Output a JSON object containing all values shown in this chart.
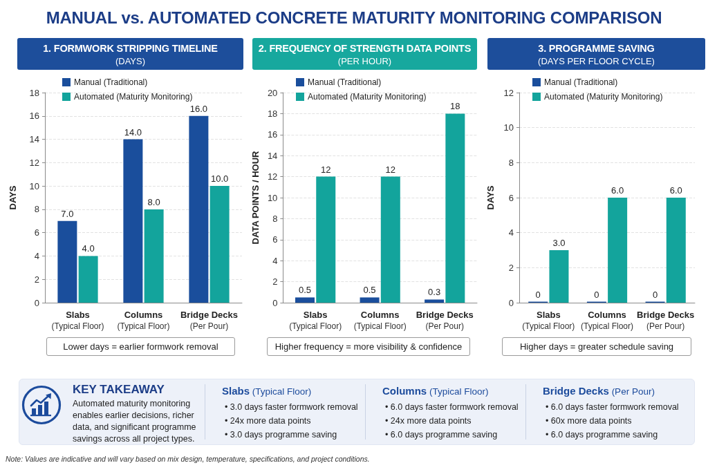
{
  "chart_data": [
    {
      "type": "other",
      "title": "MANUAL vs. AUTOMATED CONCRETE MATURITY MONITORING COMPARISON"
    },
    {
      "type": "bar",
      "title": "1. FORMWORK STRIPPING TIMELINE",
      "subtitle": "(DAYS)",
      "ylabel": "DAYS",
      "categories": [
        "Slabs\n(Typical Floor)",
        "Columns\n(Typical Floor)",
        "Bridge Decks\n(Per Pour)"
      ],
      "series": [
        {
          "name": "Manual (Traditional)",
          "color": "#1a4e9c",
          "values": [
            7,
            14,
            16
          ],
          "value_labels": [
            "7.0",
            "14.0",
            "16.0"
          ]
        },
        {
          "name": "Automated (Maturity Monitoring)",
          "color": "#13a49c",
          "values": [
            4,
            8,
            10
          ],
          "value_labels": [
            "4.0",
            "8.0",
            "10.0"
          ]
        }
      ],
      "ylim": [
        0,
        18
      ],
      "yticks": [
        0,
        2,
        4,
        6,
        8,
        10,
        12,
        14,
        16,
        18
      ],
      "grid": "y",
      "legend": "top left",
      "annotations": [
        "Lower days = earlier formwork removal"
      ]
    },
    {
      "type": "bar",
      "title": "2. FREQUENCY OF STRENGTH DATA POINTS",
      "subtitle": "(PER HOUR)",
      "ylabel": "DATA POINTS / HOUR",
      "categories": [
        "Slabs\n(Typical Floor)",
        "Columns\n(Typical Floor)",
        "Bridge Decks\n(Per Pour)"
      ],
      "series": [
        {
          "name": "Manual (Traditional)",
          "color": "#1a4e9c",
          "values": [
            0.5,
            0.5,
            0.3
          ]
        },
        {
          "name": "Automated (Maturity Monitoring)",
          "color": "#13a49c",
          "values": [
            12,
            12,
            18
          ]
        }
      ],
      "data_labels": true,
      "ylim": [
        0,
        20
      ],
      "yticks": [
        0,
        2,
        4,
        6,
        8,
        10,
        12,
        14,
        16,
        18,
        20
      ],
      "grid": "y",
      "legend": "top left",
      "annotations": [
        "Higher frequency = more visibility & confidence"
      ]
    },
    {
      "type": "bar",
      "title": "3. PROGRAMME SAVING",
      "subtitle": "(DAYS PER FLOOR CYCLE)",
      "ylabel": "DAYS",
      "categories": [
        "Slabs\n(Typical Floor)",
        "Columns\n(Typical Floor)",
        "Bridge Decks\n(Per Pour)"
      ],
      "series": [
        {
          "name": "Manual (Traditional)",
          "color": "#1a4e9c",
          "values": [
            0,
            0,
            0
          ],
          "value_labels": [
            "0",
            "0",
            "0"
          ]
        },
        {
          "name": "Automated (Maturity Monitoring)",
          "color": "#13a49c",
          "values": [
            3,
            6,
            6
          ],
          "value_labels": [
            "3.0",
            "6.0",
            "6.0"
          ]
        }
      ],
      "ylim": [
        0,
        12
      ],
      "yticks": [
        0,
        2,
        4,
        6,
        8,
        10,
        12
      ],
      "grid": "y",
      "legend": "top left",
      "annotations": [
        "Higher days = greater schedule saving"
      ]
    },
    {
      "type": "other",
      "title": "KEY TAKEAWAY",
      "annotations": [
        "Automated maturity monitoring enables earlier decisions, richer data, and significant programme savings across all project types.",
        "Slabs (Typical Floor)",
        "• 3.0 days faster formwork removal",
        "• 24x more data points",
        "• 3.0 days programme saving",
        "Columns (Typical Floor)",
        "• 6.0 days faster formwork removal",
        "• 24x more data points",
        "• 6.0 days programme saving",
        "Bridge Decks (Per Pour)",
        "• 6.0 days faster formwork removal",
        "• 60x more data points",
        "• 6.0 days programme saving",
        "Note: Values are indicative and will vary based on mix design, temperature, specifications, and project conditions."
      ]
    }
  ]
}
